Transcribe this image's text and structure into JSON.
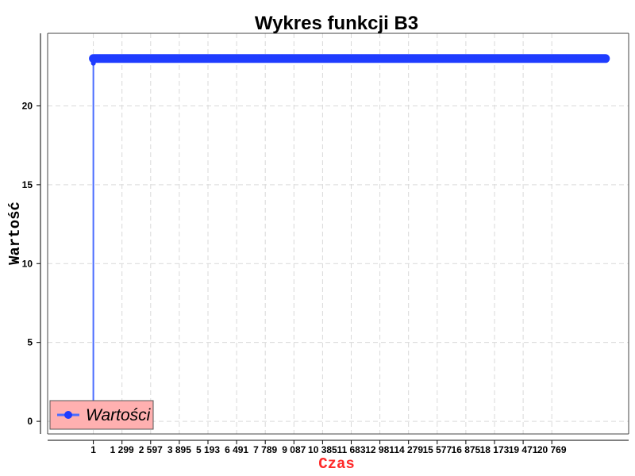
{
  "chart_data": {
    "type": "line",
    "title": "Wykres funkcji B3",
    "xlabel": "Czas",
    "ylabel": "Wartość",
    "xlim": [
      -2070,
      24250
    ],
    "ylim": [
      -0.8,
      24.6
    ],
    "x_ticks": [
      1,
      1299,
      2597,
      3895,
      5193,
      6491,
      7789,
      9087,
      10385,
      11683,
      12981,
      14279,
      15577,
      16875,
      18173,
      19471,
      20769
    ],
    "x_tick_labels": [
      "1",
      "1 299",
      "2 597",
      "3 895",
      "5 193",
      "6 491",
      "7 789",
      "9 087",
      "10 385",
      "11 683",
      "12 981",
      "14 279",
      "15 577",
      "16 875",
      "18 173",
      "19 471",
      "20 769"
    ],
    "y_ticks": [
      0,
      5,
      10,
      15,
      20
    ],
    "y_tick_labels": [
      "0",
      "5",
      "10",
      "15",
      "20"
    ],
    "grid": true,
    "legend_position": "bottom-left",
    "series": [
      {
        "name": "Wartości",
        "color": "#1f3cff",
        "line_color": "#4a6cff",
        "x_start": 1,
        "x_end": 23200,
        "first_value": 0,
        "steady_value": 23,
        "initial_points": [
          {
            "x": 1,
            "y": 0
          },
          {
            "x": 2,
            "y": 22.7
          },
          {
            "x": 3,
            "y": 22.8
          },
          {
            "x": 5,
            "y": 22.9
          },
          {
            "x": 10,
            "y": 23
          }
        ]
      }
    ]
  },
  "colors": {
    "legend_bg": "#ffb0b0",
    "legend_border": "#555555",
    "grid": "#d9d9d9",
    "xlabel": "#ff2a2a"
  }
}
